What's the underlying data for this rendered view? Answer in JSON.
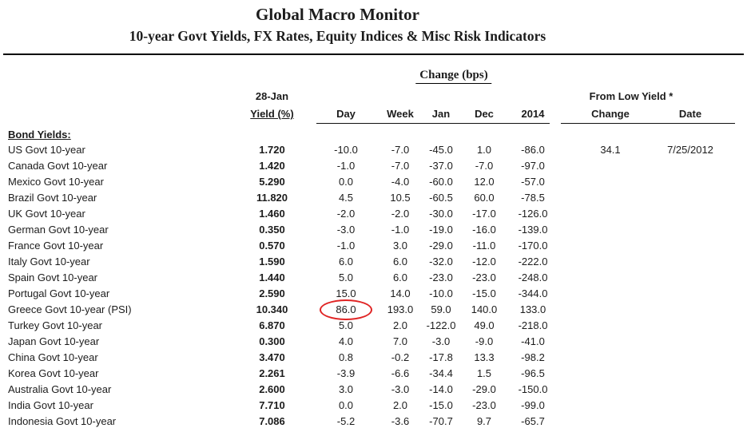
{
  "header": {
    "title": "Global Macro Monitor",
    "subtitle": "10-year Govt Yields, FX Rates, Equity Indices & Misc Risk Indicators"
  },
  "table": {
    "change_group_label": "Change (bps)",
    "from_low_group_label": "From Low Yield *",
    "yield_header": [
      "28-Jan",
      "Yield (%)"
    ],
    "change_cols": [
      "Day",
      "Week",
      "Jan",
      "Dec",
      "2014"
    ],
    "from_low_cols": [
      "Change",
      "Date"
    ],
    "section_label": "Bond Yields:",
    "rows": [
      {
        "name": "US Govt 10-year",
        "yield": "1.720",
        "changes": [
          "-10.0",
          "-7.0",
          "-45.0",
          "1.0",
          "-86.0"
        ],
        "from_low": [
          "34.1",
          "7/25/2012"
        ]
      },
      {
        "name": "Canada Govt 10-year",
        "yield": "1.420",
        "changes": [
          "-1.0",
          "-7.0",
          "-37.0",
          "-7.0",
          "-97.0"
        ]
      },
      {
        "name": "Mexico Govt 10-year",
        "yield": "5.290",
        "changes": [
          "0.0",
          "-4.0",
          "-60.0",
          "12.0",
          "-57.0"
        ]
      },
      {
        "name": "Brazil Govt 10-year",
        "yield": "11.820",
        "changes": [
          "4.5",
          "10.5",
          "-60.5",
          "60.0",
          "-78.5"
        ]
      },
      {
        "name": "UK Govt 10-year",
        "yield": "1.460",
        "changes": [
          "-2.0",
          "-2.0",
          "-30.0",
          "-17.0",
          "-126.0"
        ]
      },
      {
        "name": "German Govt 10-year",
        "yield": "0.350",
        "changes": [
          "-3.0",
          "-1.0",
          "-19.0",
          "-16.0",
          "-139.0"
        ]
      },
      {
        "name": "France Govt 10-year",
        "yield": "0.570",
        "changes": [
          "-1.0",
          "3.0",
          "-29.0",
          "-11.0",
          "-170.0"
        ]
      },
      {
        "name": "Italy Govt 10-year",
        "yield": "1.590",
        "changes": [
          "6.0",
          "6.0",
          "-32.0",
          "-12.0",
          "-222.0"
        ]
      },
      {
        "name": "Spain Govt 10-year",
        "yield": "1.440",
        "changes": [
          "5.0",
          "6.0",
          "-23.0",
          "-23.0",
          "-248.0"
        ]
      },
      {
        "name": "Portugal Govt 10-year",
        "yield": "2.590",
        "changes": [
          "15.0",
          "14.0",
          "-10.0",
          "-15.0",
          "-344.0"
        ]
      },
      {
        "name": "Greece Govt 10-year (PSI)",
        "yield": "10.340",
        "changes": [
          "86.0",
          "193.0",
          "59.0",
          "140.0",
          "133.0"
        ]
      },
      {
        "name": "Turkey Govt 10-year",
        "yield": "6.870",
        "changes": [
          "5.0",
          "2.0",
          "-122.0",
          "49.0",
          "-218.0"
        ]
      },
      {
        "name": "Japan Govt 10-year",
        "yield": "0.300",
        "changes": [
          "4.0",
          "7.0",
          "-3.0",
          "-9.0",
          "-41.0"
        ]
      },
      {
        "name": "China Govt 10-year",
        "yield": "3.470",
        "changes": [
          "0.8",
          "-0.2",
          "-17.8",
          "13.3",
          "-98.2"
        ]
      },
      {
        "name": "Korea Govt 10-year",
        "yield": "2.261",
        "changes": [
          "-3.9",
          "-6.6",
          "-34.4",
          "1.5",
          "-96.5"
        ]
      },
      {
        "name": "Australia Govt 10-year",
        "yield": "2.600",
        "changes": [
          "3.0",
          "-3.0",
          "-14.0",
          "-29.0",
          "-150.0"
        ]
      },
      {
        "name": "India Govt 10-year",
        "yield": "7.710",
        "changes": [
          "0.0",
          "2.0",
          "-15.0",
          "-23.0",
          "-99.0"
        ]
      },
      {
        "name": "Indonesia Govt 10-year",
        "yield": "7.086",
        "changes": [
          "-5.2",
          "-3.6",
          "-70.7",
          "9.7",
          "-65.7"
        ]
      }
    ]
  },
  "annotation": {
    "target_row": "Greece Govt 10-year (PSI)",
    "target_column": "Day",
    "color": "#e02424"
  }
}
